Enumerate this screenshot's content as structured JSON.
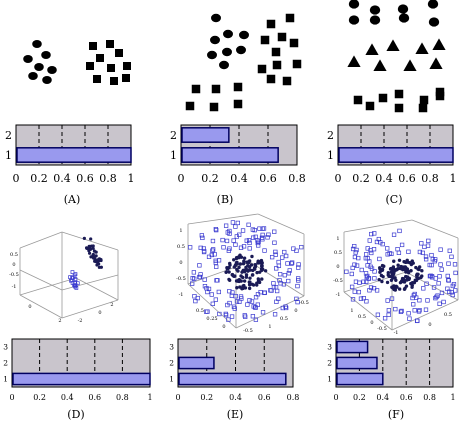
{
  "colors": {
    "marker": "#000000",
    "dark_marker": "#1a1a55",
    "blue_marker": "#3a3ad0",
    "bar_fill": "#9999ee",
    "bar_stroke": "#000060",
    "plot_bg": "#c9c5cc",
    "grid": "#000000",
    "axis3d": "#9a9a9a"
  },
  "top_row": [
    {
      "caption": "(A)",
      "chart_data": {
        "type": "bar",
        "orientation": "horizontal",
        "categories": [
          "1",
          "2"
        ],
        "values": [
          1.0,
          0
        ],
        "xlim": [
          0,
          1
        ],
        "xticks": [
          "0",
          "0.2",
          "0.4",
          "0.6",
          "0.8",
          "1"
        ],
        "grid": "x-dashed"
      }
    },
    {
      "caption": "(B)",
      "chart_data": {
        "type": "bar",
        "orientation": "horizontal",
        "categories": [
          "1",
          "2"
        ],
        "values": [
          0.67,
          0.33
        ],
        "xlim": [
          0,
          0.8
        ],
        "xticks": [
          "0",
          "0.2",
          "0.4",
          "0.6",
          "0.8"
        ],
        "grid": "x-dashed"
      }
    },
    {
      "caption": "(C)",
      "chart_data": {
        "type": "bar",
        "orientation": "horizontal",
        "categories": [
          "1",
          "2"
        ],
        "values": [
          1.0,
          0
        ],
        "xlim": [
          0,
          1
        ],
        "xticks": [
          "0",
          "0.2",
          "0.4",
          "0.6",
          "0.8",
          "1"
        ],
        "grid": "x-dashed"
      }
    }
  ],
  "bottom_row": [
    {
      "caption": "(D)",
      "chart_data": {
        "type": "bar",
        "orientation": "horizontal",
        "categories": [
          "1",
          "2",
          "3"
        ],
        "values": [
          1.0,
          0,
          0
        ],
        "xlim": [
          0,
          1
        ],
        "xticks": [
          "0",
          "0.2",
          "0.4",
          "0.6",
          "0.8",
          "1"
        ],
        "grid": "x-dashed"
      }
    },
    {
      "caption": "(E)",
      "chart_data": {
        "type": "bar",
        "orientation": "horizontal",
        "categories": [
          "1",
          "2",
          "3"
        ],
        "values": [
          0.75,
          0.25,
          0
        ],
        "xlim": [
          0,
          0.8
        ],
        "xticks": [
          "0",
          "0.2",
          "0.4",
          "0.6",
          "0.8"
        ],
        "grid": "x-dashed"
      }
    },
    {
      "caption": "(F)",
      "chart_data": {
        "type": "bar",
        "orientation": "horizontal",
        "categories": [
          "1",
          "2",
          "3"
        ],
        "values": [
          0.4,
          0.35,
          0.27
        ],
        "xlim": [
          0,
          1
        ],
        "xticks": [
          "0",
          "0.2",
          "0.4",
          "0.6",
          "0.8",
          "1"
        ],
        "grid": "x-dashed"
      }
    }
  ],
  "scatter_3d_ticks": {
    "D": [
      "0.5",
      "0",
      "-0.5",
      "-1",
      "0",
      "2",
      "-2",
      "0",
      "2"
    ],
    "E": [
      "1",
      "0.5",
      "0",
      "-0.5",
      "-1",
      "0.5",
      "0.25",
      "0",
      "-0.5",
      "1",
      "0.5",
      "0",
      "-0.5"
    ],
    "F": [
      "1",
      "0.5",
      "0",
      "-0.5",
      "-1",
      "1",
      "0.5",
      "0",
      "-0.5",
      "-1",
      "0",
      "0.5"
    ]
  }
}
